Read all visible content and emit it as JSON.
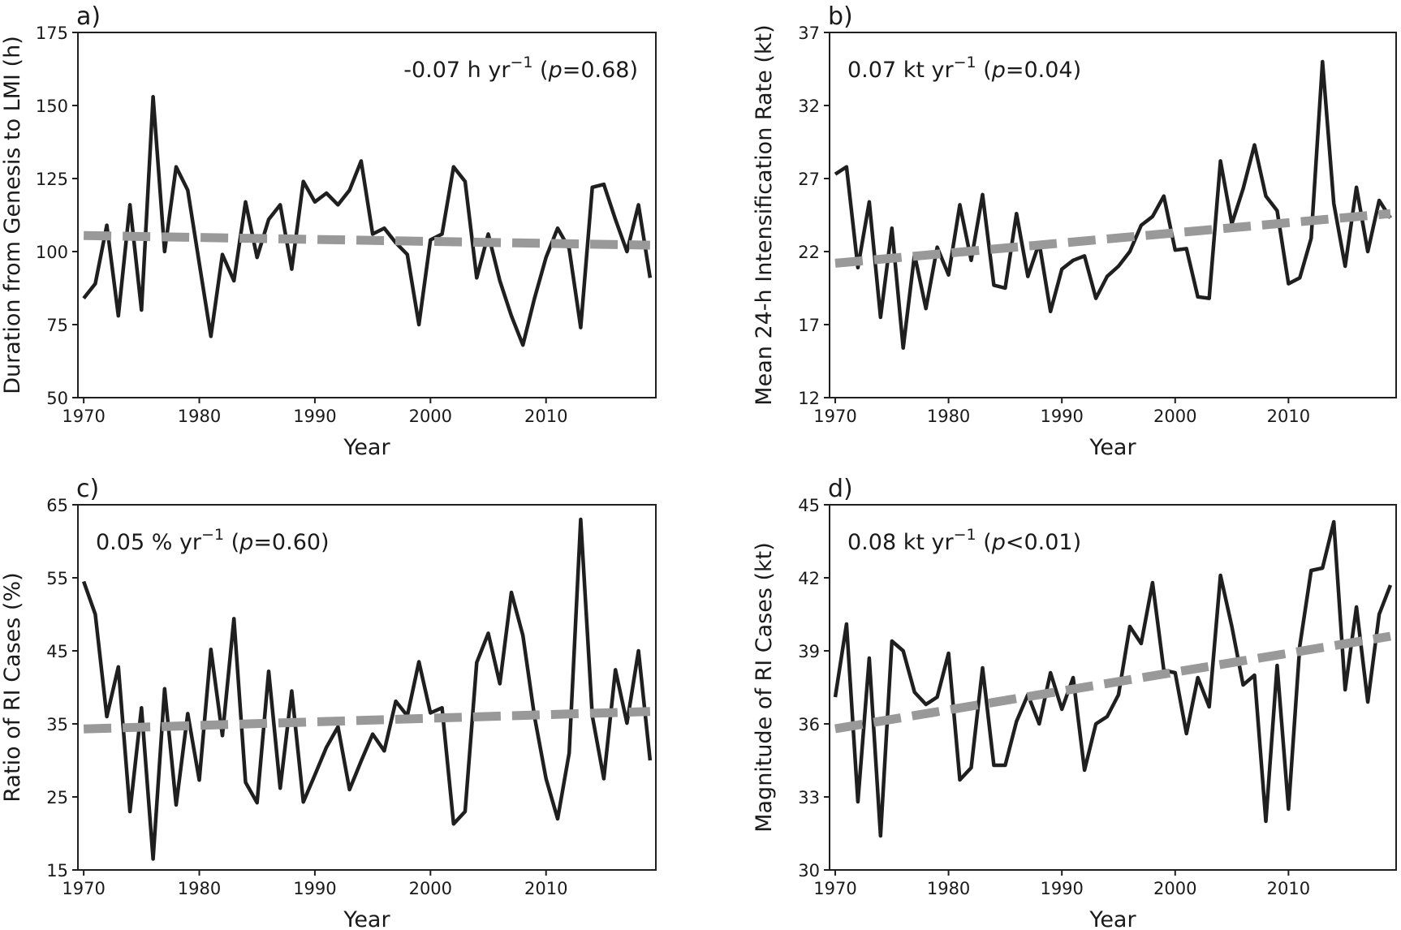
{
  "colors": {
    "data_line": "#1f1f1f",
    "trend_line": "#999999",
    "axes": "#1f1f1f"
  },
  "chart_data": [
    {
      "type": "line",
      "panel_label": "a)",
      "xlabel": "Year",
      "ylabel": "Duration from Genesis to LMI (h)",
      "xlim": [
        1969.5,
        2019.5
      ],
      "ylim": [
        50,
        175
      ],
      "xticks": [
        1970,
        1980,
        1990,
        2000,
        2010
      ],
      "yticks": [
        50,
        75,
        100,
        125,
        150,
        175
      ],
      "annotation": {
        "lead": "-0.07 h yr",
        "exp": "−1",
        "mid": " (",
        "p": "p",
        "tail": "=0.68)"
      },
      "annotation_pos": "top-right",
      "x": [
        1970,
        1971,
        1972,
        1973,
        1974,
        1975,
        1976,
        1977,
        1978,
        1979,
        1980,
        1981,
        1982,
        1983,
        1984,
        1985,
        1986,
        1987,
        1988,
        1989,
        1990,
        1991,
        1992,
        1993,
        1994,
        1995,
        1996,
        1997,
        1998,
        1999,
        2000,
        2001,
        2002,
        2003,
        2004,
        2005,
        2006,
        2007,
        2008,
        2009,
        2010,
        2011,
        2012,
        2013,
        2014,
        2015,
        2016,
        2017,
        2018,
        2019
      ],
      "y": [
        84,
        89,
        109,
        78,
        116,
        80,
        153,
        100,
        129,
        121,
        96,
        71,
        99,
        90,
        117,
        98,
        111,
        116,
        94,
        124,
        117,
        120,
        116,
        121,
        131,
        106,
        108,
        103,
        99,
        75,
        104,
        106,
        129,
        124,
        91,
        106,
        90,
        78,
        68,
        84,
        98,
        108,
        101,
        74,
        122,
        123,
        111,
        100,
        116,
        91
      ],
      "trend": {
        "start": [
          1970,
          105.5
        ],
        "end": [
          2019,
          102.2
        ]
      }
    },
    {
      "type": "line",
      "panel_label": "b)",
      "xlabel": "Year",
      "ylabel": "Mean 24-h Intensification Rate (kt)",
      "xlim": [
        1969.5,
        2019.5
      ],
      "ylim": [
        12,
        37
      ],
      "xticks": [
        1970,
        1980,
        1990,
        2000,
        2010
      ],
      "yticks": [
        12,
        17,
        22,
        27,
        32,
        37
      ],
      "annotation": {
        "lead": "0.07 kt yr",
        "exp": "−1",
        "mid": " (",
        "p": "p",
        "tail": "=0.04)"
      },
      "annotation_pos": "top-left",
      "x": [
        1970,
        1971,
        1972,
        1973,
        1974,
        1975,
        1976,
        1977,
        1978,
        1979,
        1980,
        1981,
        1982,
        1983,
        1984,
        1985,
        1986,
        1987,
        1988,
        1989,
        1990,
        1991,
        1992,
        1993,
        1994,
        1995,
        1996,
        1997,
        1998,
        1999,
        2000,
        2001,
        2002,
        2003,
        2004,
        2005,
        2006,
        2007,
        2008,
        2009,
        2010,
        2011,
        2012,
        2013,
        2014,
        2015,
        2016,
        2017,
        2018,
        2019
      ],
      "y": [
        27.3,
        27.8,
        20.9,
        25.4,
        17.5,
        23.6,
        15.4,
        21.8,
        18.1,
        22.3,
        20.4,
        25.2,
        21.4,
        25.9,
        19.7,
        19.5,
        24.6,
        20.3,
        22.6,
        17.9,
        20.8,
        21.4,
        21.7,
        18.8,
        20.3,
        21.0,
        22.0,
        23.8,
        24.4,
        25.8,
        22.1,
        22.2,
        18.9,
        18.8,
        28.2,
        23.9,
        26.3,
        29.3,
        25.8,
        24.8,
        19.8,
        20.2,
        22.9,
        35.0,
        25.3,
        21.0,
        26.4,
        22.0,
        25.5,
        24.3
      ],
      "trend": {
        "start": [
          1970,
          21.2
        ],
        "end": [
          2019,
          24.6
        ]
      }
    },
    {
      "type": "line",
      "panel_label": "c)",
      "xlabel": "Year",
      "ylabel": "Ratio of RI Cases (%)",
      "xlim": [
        1969.5,
        2019.5
      ],
      "ylim": [
        15,
        65
      ],
      "xticks": [
        1970,
        1980,
        1990,
        2000,
        2010
      ],
      "yticks": [
        15,
        25,
        35,
        45,
        55,
        65
      ],
      "annotation": {
        "lead": "0.05 % yr",
        "exp": "−1",
        "mid": " (",
        "p": "p",
        "tail": "=0.60)"
      },
      "annotation_pos": "top-left",
      "x": [
        1970,
        1971,
        1972,
        1973,
        1974,
        1975,
        1976,
        1977,
        1978,
        1979,
        1980,
        1981,
        1982,
        1983,
        1984,
        1985,
        1986,
        1987,
        1988,
        1989,
        1990,
        1991,
        1992,
        1993,
        1994,
        1995,
        1996,
        1997,
        1998,
        1999,
        2000,
        2001,
        2002,
        2003,
        2004,
        2005,
        2006,
        2007,
        2008,
        2009,
        2010,
        2011,
        2012,
        2013,
        2014,
        2015,
        2016,
        2017,
        2018,
        2019
      ],
      "y": [
        54.5,
        50.0,
        36.0,
        42.8,
        23.0,
        37.2,
        16.5,
        39.8,
        23.9,
        36.4,
        27.3,
        45.2,
        33.4,
        49.4,
        27.0,
        24.2,
        42.2,
        26.2,
        39.5,
        24.3,
        28.0,
        31.8,
        34.6,
        26.0,
        29.9,
        33.6,
        31.3,
        38.1,
        36.1,
        43.5,
        36.5,
        37.2,
        21.3,
        23.0,
        43.4,
        47.4,
        40.5,
        53.0,
        47.1,
        36.0,
        27.5,
        22.0,
        31.0,
        63.0,
        36.1,
        27.5,
        42.4,
        35.1,
        45.0,
        30.0
      ],
      "trend": {
        "start": [
          1970,
          34.3
        ],
        "end": [
          2019,
          36.7
        ]
      }
    },
    {
      "type": "line",
      "panel_label": "d)",
      "xlabel": "Year",
      "ylabel": "Magnitude of RI Cases (kt)",
      "xlim": [
        1969.5,
        2019.5
      ],
      "ylim": [
        30,
        45
      ],
      "xticks": [
        1970,
        1980,
        1990,
        2000,
        2010
      ],
      "yticks": [
        30,
        33,
        36,
        39,
        42,
        45
      ],
      "annotation": {
        "lead": "0.08 kt yr",
        "exp": "−1",
        "mid": " (",
        "p": "p",
        "tail": "<0.01)"
      },
      "annotation_pos": "top-left",
      "x": [
        1970,
        1971,
        1972,
        1973,
        1974,
        1975,
        1976,
        1977,
        1978,
        1979,
        1980,
        1981,
        1982,
        1983,
        1984,
        1985,
        1986,
        1987,
        1988,
        1989,
        1990,
        1991,
        1992,
        1993,
        1994,
        1995,
        1996,
        1997,
        1998,
        1999,
        2000,
        2001,
        2002,
        2003,
        2004,
        2005,
        2006,
        2007,
        2008,
        2009,
        2010,
        2011,
        2012,
        2013,
        2014,
        2015,
        2016,
        2017,
        2018,
        2019
      ],
      "y": [
        37.1,
        40.1,
        32.8,
        38.7,
        31.4,
        39.4,
        39.0,
        37.3,
        36.8,
        37.1,
        38.9,
        33.7,
        34.2,
        38.3,
        34.3,
        34.3,
        36.1,
        37.2,
        36.0,
        38.1,
        36.6,
        37.9,
        34.1,
        36.0,
        36.3,
        37.2,
        40.0,
        39.3,
        41.8,
        38.2,
        38.1,
        35.6,
        37.9,
        36.7,
        42.1,
        40.0,
        37.6,
        38.0,
        32.0,
        38.4,
        32.5,
        39.2,
        42.3,
        42.4,
        44.3,
        37.4,
        40.8,
        36.9,
        40.5,
        41.7
      ],
      "trend": {
        "start": [
          1970,
          35.8
        ],
        "end": [
          2019,
          39.6
        ]
      }
    }
  ]
}
